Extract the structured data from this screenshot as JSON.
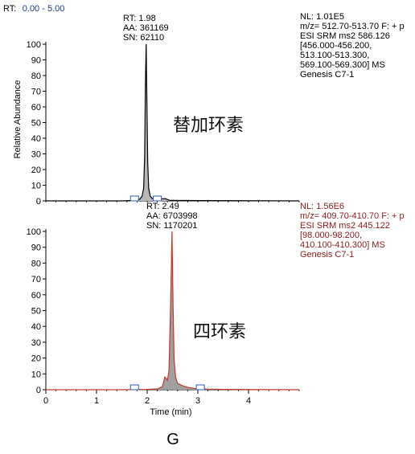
{
  "header": {
    "rt_prefix": "RT:",
    "rt_range": "0.00 - 5.00",
    "rt_range_color": "#1f3a8a"
  },
  "panel_letter": "G",
  "chart_data": [
    {
      "type": "line",
      "compound_label": "替加环素",
      "ylabel": "Relative Abundance",
      "xlim": [
        0,
        5
      ],
      "ylim": [
        0,
        100
      ],
      "yticks": [
        "0",
        "10",
        "20",
        "30",
        "40",
        "50",
        "60",
        "70",
        "80",
        "90",
        "100"
      ],
      "line_color": "#000000",
      "fill_color": "#b8b8b8",
      "peak_annotation": [
        "RT: 1.98",
        "AA: 361169",
        "SN: 62110"
      ],
      "info_color": "#000000",
      "info_text": [
        "NL: 1.01E5",
        "m/z= 512.70-513.70 F: + p",
        "ESI SRM ms2 586.126",
        "[456.000-456.200,",
        "513.100-513.300,",
        "569.100-569.300]  MS",
        "Genesis C7-1"
      ],
      "series": [
        {
          "x": [
            0.0,
            1.5,
            1.75,
            1.85,
            1.9,
            1.93,
            1.95,
            1.965,
            1.98,
            1.995,
            2.01,
            2.03,
            2.06,
            2.1,
            2.2,
            2.35,
            2.45,
            5.0
          ],
          "y": [
            0,
            0,
            0.3,
            1,
            3,
            8,
            28,
            75,
            100,
            62,
            25,
            8,
            3,
            1.5,
            1,
            1.5,
            0.3,
            0
          ]
        }
      ],
      "baseline_markers": [
        1.75,
        2.2
      ]
    },
    {
      "type": "line",
      "compound_label": "四环素",
      "xlabel": "Time (min)",
      "xlim": [
        0,
        5
      ],
      "ylim": [
        0,
        100
      ],
      "xticks": [
        "0",
        "1",
        "2",
        "3",
        "4"
      ],
      "yticks": [
        "0",
        "10",
        "20",
        "30",
        "40",
        "50",
        "60",
        "70",
        "80",
        "90",
        "100"
      ],
      "line_color": "#c0392b",
      "fill_color": "#a0a0a0",
      "peak_annotation": [
        "RT: 2.49",
        "AA: 6703998",
        "SN: 1170201"
      ],
      "info_color": "#8b1a1a",
      "info_text": [
        "NL: 1.56E6",
        "m/z= 409.70-410.70 F: + p",
        "ESI SRM ms2 445.122",
        "[98.000-98.200,",
        "410.100-410.300]  MS",
        "Genesis C7-1"
      ],
      "series": [
        {
          "x": [
            0.0,
            1.5,
            2.0,
            2.2,
            2.3,
            2.35,
            2.4,
            2.43,
            2.46,
            2.49,
            2.51,
            2.53,
            2.56,
            2.6,
            2.7,
            2.8,
            2.95,
            3.2,
            3.5,
            5.0
          ],
          "y": [
            0,
            0,
            0.2,
            0.5,
            2,
            8,
            6,
            12,
            50,
            100,
            55,
            20,
            8,
            4,
            2.5,
            1.5,
            0.8,
            0.4,
            0.2,
            0
          ]
        }
      ],
      "baseline_markers": [
        1.75,
        3.05
      ]
    }
  ]
}
